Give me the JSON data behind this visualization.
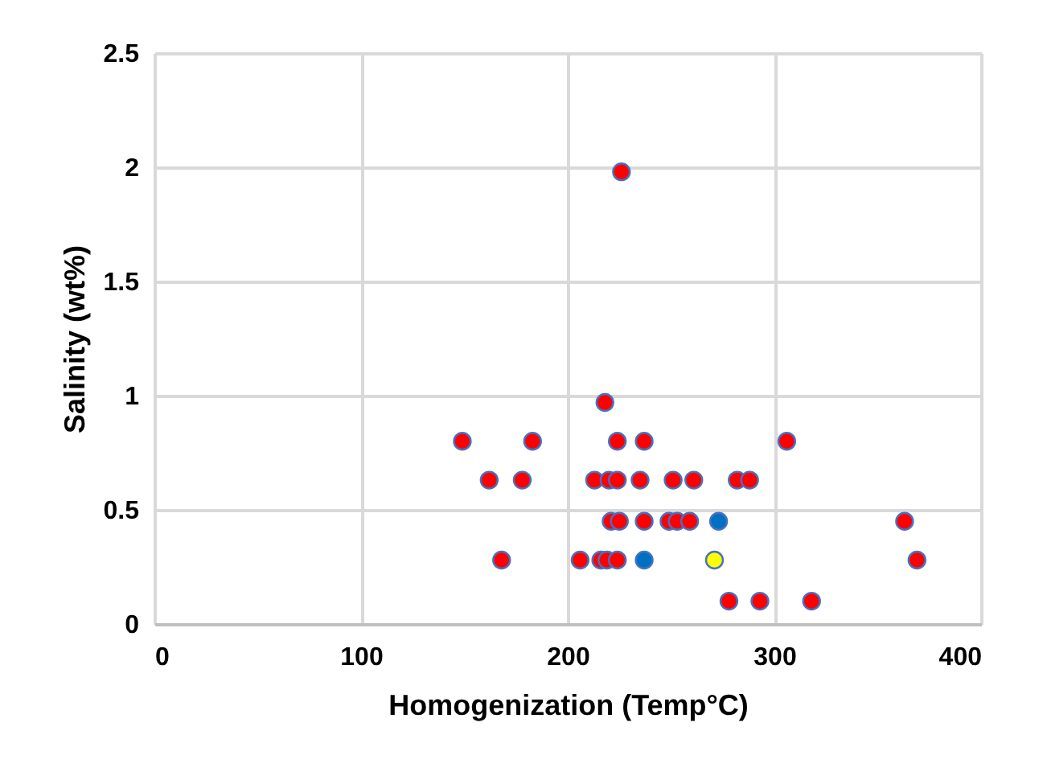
{
  "chart_data": {
    "type": "scatter",
    "xlabel": "Homogenization (Temp°C)",
    "ylabel": "Salinity (wt%)",
    "xlim": [
      0,
      400
    ],
    "xticks": [
      0,
      100,
      200,
      300,
      400
    ],
    "ylim": [
      0,
      2.5
    ],
    "yticks": [
      0,
      0.5,
      1,
      1.5,
      2,
      2.5
    ],
    "grid": true,
    "legend": false,
    "marker": "circle",
    "series": [
      {
        "color": "#ff0000",
        "x": [
          149,
          183,
          224,
          237,
          306,
          162,
          178,
          213,
          220,
          224,
          235,
          251,
          261,
          282,
          288,
          221,
          225,
          237,
          249,
          253,
          259,
          363,
          168,
          206,
          216,
          219,
          224,
          369,
          278,
          293,
          318,
          218,
          226
        ],
        "values": [
          0.8,
          0.8,
          0.8,
          0.8,
          0.8,
          0.63,
          0.63,
          0.63,
          0.63,
          0.63,
          0.63,
          0.63,
          0.63,
          0.63,
          0.63,
          0.45,
          0.45,
          0.45,
          0.45,
          0.45,
          0.45,
          0.45,
          0.28,
          0.28,
          0.28,
          0.28,
          0.28,
          0.28,
          0.1,
          0.1,
          0.1,
          0.97,
          1.98
        ]
      },
      {
        "color": "#0070c0",
        "x": [
          273,
          237
        ],
        "values": [
          0.45,
          0.28
        ]
      },
      {
        "color": "#ffff00",
        "x": [
          271
        ],
        "values": [
          0.28
        ]
      }
    ]
  }
}
